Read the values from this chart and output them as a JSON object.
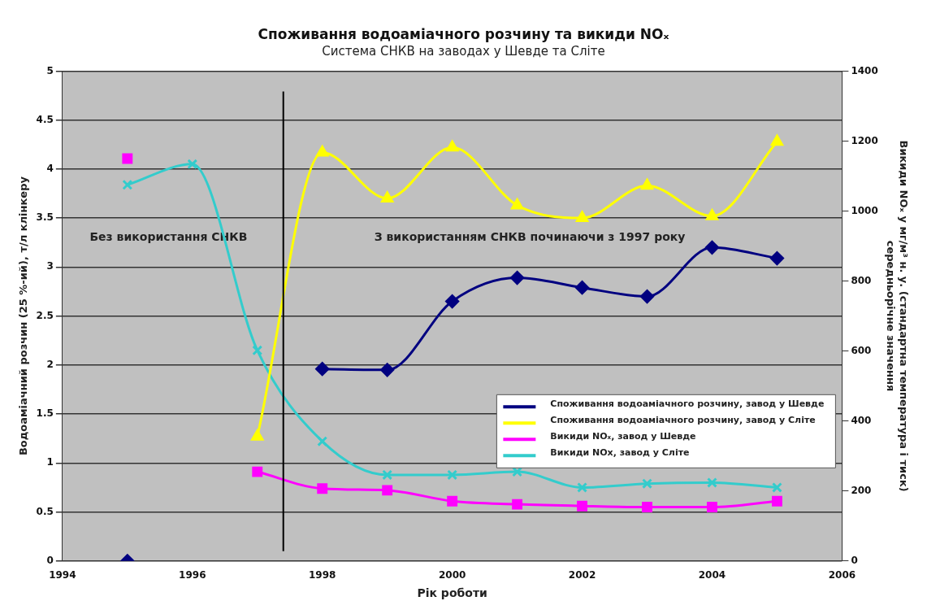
{
  "chart_data": {
    "type": "line",
    "title": "Споживання водоаміачного розчину та викиди NOₓ",
    "subtitle": "Система СНКВ на заводах у Шевде та Сліте",
    "xlabel": "Рік роботи",
    "ylabel": "Водоаміачний розчин (25 %-ий), т/л клінкеру",
    "y2label": "Викиди NOₓ у мг/м³ н. у. (стандартна температура і тиск)\nсередньорічне значення",
    "x": [
      1995,
      1996,
      1997,
      1998,
      1999,
      2000,
      2001,
      2002,
      2003,
      2004,
      2005
    ],
    "xlim": [
      1994,
      2006
    ],
    "xticks": [
      1994,
      1996,
      1998,
      2000,
      2002,
      2004,
      2006
    ],
    "ylim": [
      0,
      5
    ],
    "yticks": [
      0,
      0.5,
      1,
      1.5,
      2,
      2.5,
      3,
      3.5,
      4,
      4.5,
      5
    ],
    "y2lim": [
      0,
      1400
    ],
    "y2ticks": [
      0,
      200,
      400,
      600,
      800,
      1000,
      1200,
      1400
    ],
    "grid": "y",
    "legend": "bottom right",
    "series": [
      {
        "name": "Споживання водоаміачного розчину, завод у Шевде",
        "color": "#000080",
        "marker": "diamond",
        "values": [
          0,
          null,
          null,
          1.96,
          1.95,
          2.65,
          2.89,
          2.79,
          2.7,
          3.2,
          3.09
        ]
      },
      {
        "name": "Споживання водоаміачного розчину, завод у Сліте",
        "color": "#ffff00",
        "marker": "triangle",
        "values": [
          null,
          null,
          1.27,
          4.17,
          3.7,
          4.22,
          3.63,
          3.5,
          3.83,
          3.52,
          4.28
        ]
      },
      {
        "name": "Викиди NOₓ, завод у Шевде",
        "color": "#ff00ff",
        "marker": "square",
        "axis": "y2",
        "values": [
          1150,
          null,
          255,
          207,
          202,
          171,
          162,
          157,
          154,
          154,
          171
        ]
      },
      {
        "name": "Викиди NOx, завод у Сліте",
        "color": "#33cccc",
        "marker": "cross",
        "axis": "y2",
        "values": [
          1075,
          1134,
          602,
          342,
          246,
          246,
          255,
          210,
          221,
          224,
          210
        ]
      }
    ],
    "ref_lines": [
      {
        "axis": "x",
        "value": 1997.4,
        "color": "#000000"
      }
    ],
    "annotations": [
      "Без використання СНКВ",
      "З використанням СНКВ починаючи з 1997 року"
    ]
  }
}
